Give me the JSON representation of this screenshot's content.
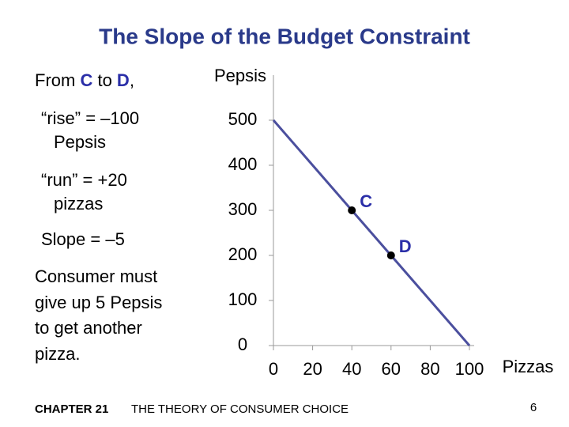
{
  "slide": {
    "intro": [
      "From ",
      "C",
      " to ",
      "D",
      ","
    ],
    "rise": [
      "“rise” = –100",
      "Pepsis"
    ],
    "run": [
      "“run” = +20",
      "pizzas"
    ],
    "slope": "Slope = –5",
    "conclusion": [
      "Consumer must",
      "give up 5 Pepsis",
      "to get another",
      "pizza."
    ],
    "chapter": "CHAPTER 21",
    "chapter_title": "THE THEORY OF CONSUMER CHOICE",
    "page": "6"
  },
  "chart_data": {
    "type": "line",
    "title": "The Slope of the Budget Constraint",
    "y_label": "Pepsis",
    "x_label": "Pizzas",
    "xlim": [
      0,
      100
    ],
    "ylim": [
      0,
      600
    ],
    "xticks": [
      0,
      20,
      40,
      60,
      80,
      100
    ],
    "yticks": [
      0,
      100,
      200,
      300,
      400,
      500
    ],
    "series": [
      {
        "color": "#4b4f9e",
        "x": [
          0,
          100
        ],
        "values": [
          500,
          0
        ]
      }
    ],
    "points": {
      "color": "#000000",
      "label_color": "#2b2fa8",
      "x": [
        40,
        60
      ],
      "values": [
        300,
        200
      ],
      "labels": [
        "C",
        "D"
      ]
    }
  }
}
